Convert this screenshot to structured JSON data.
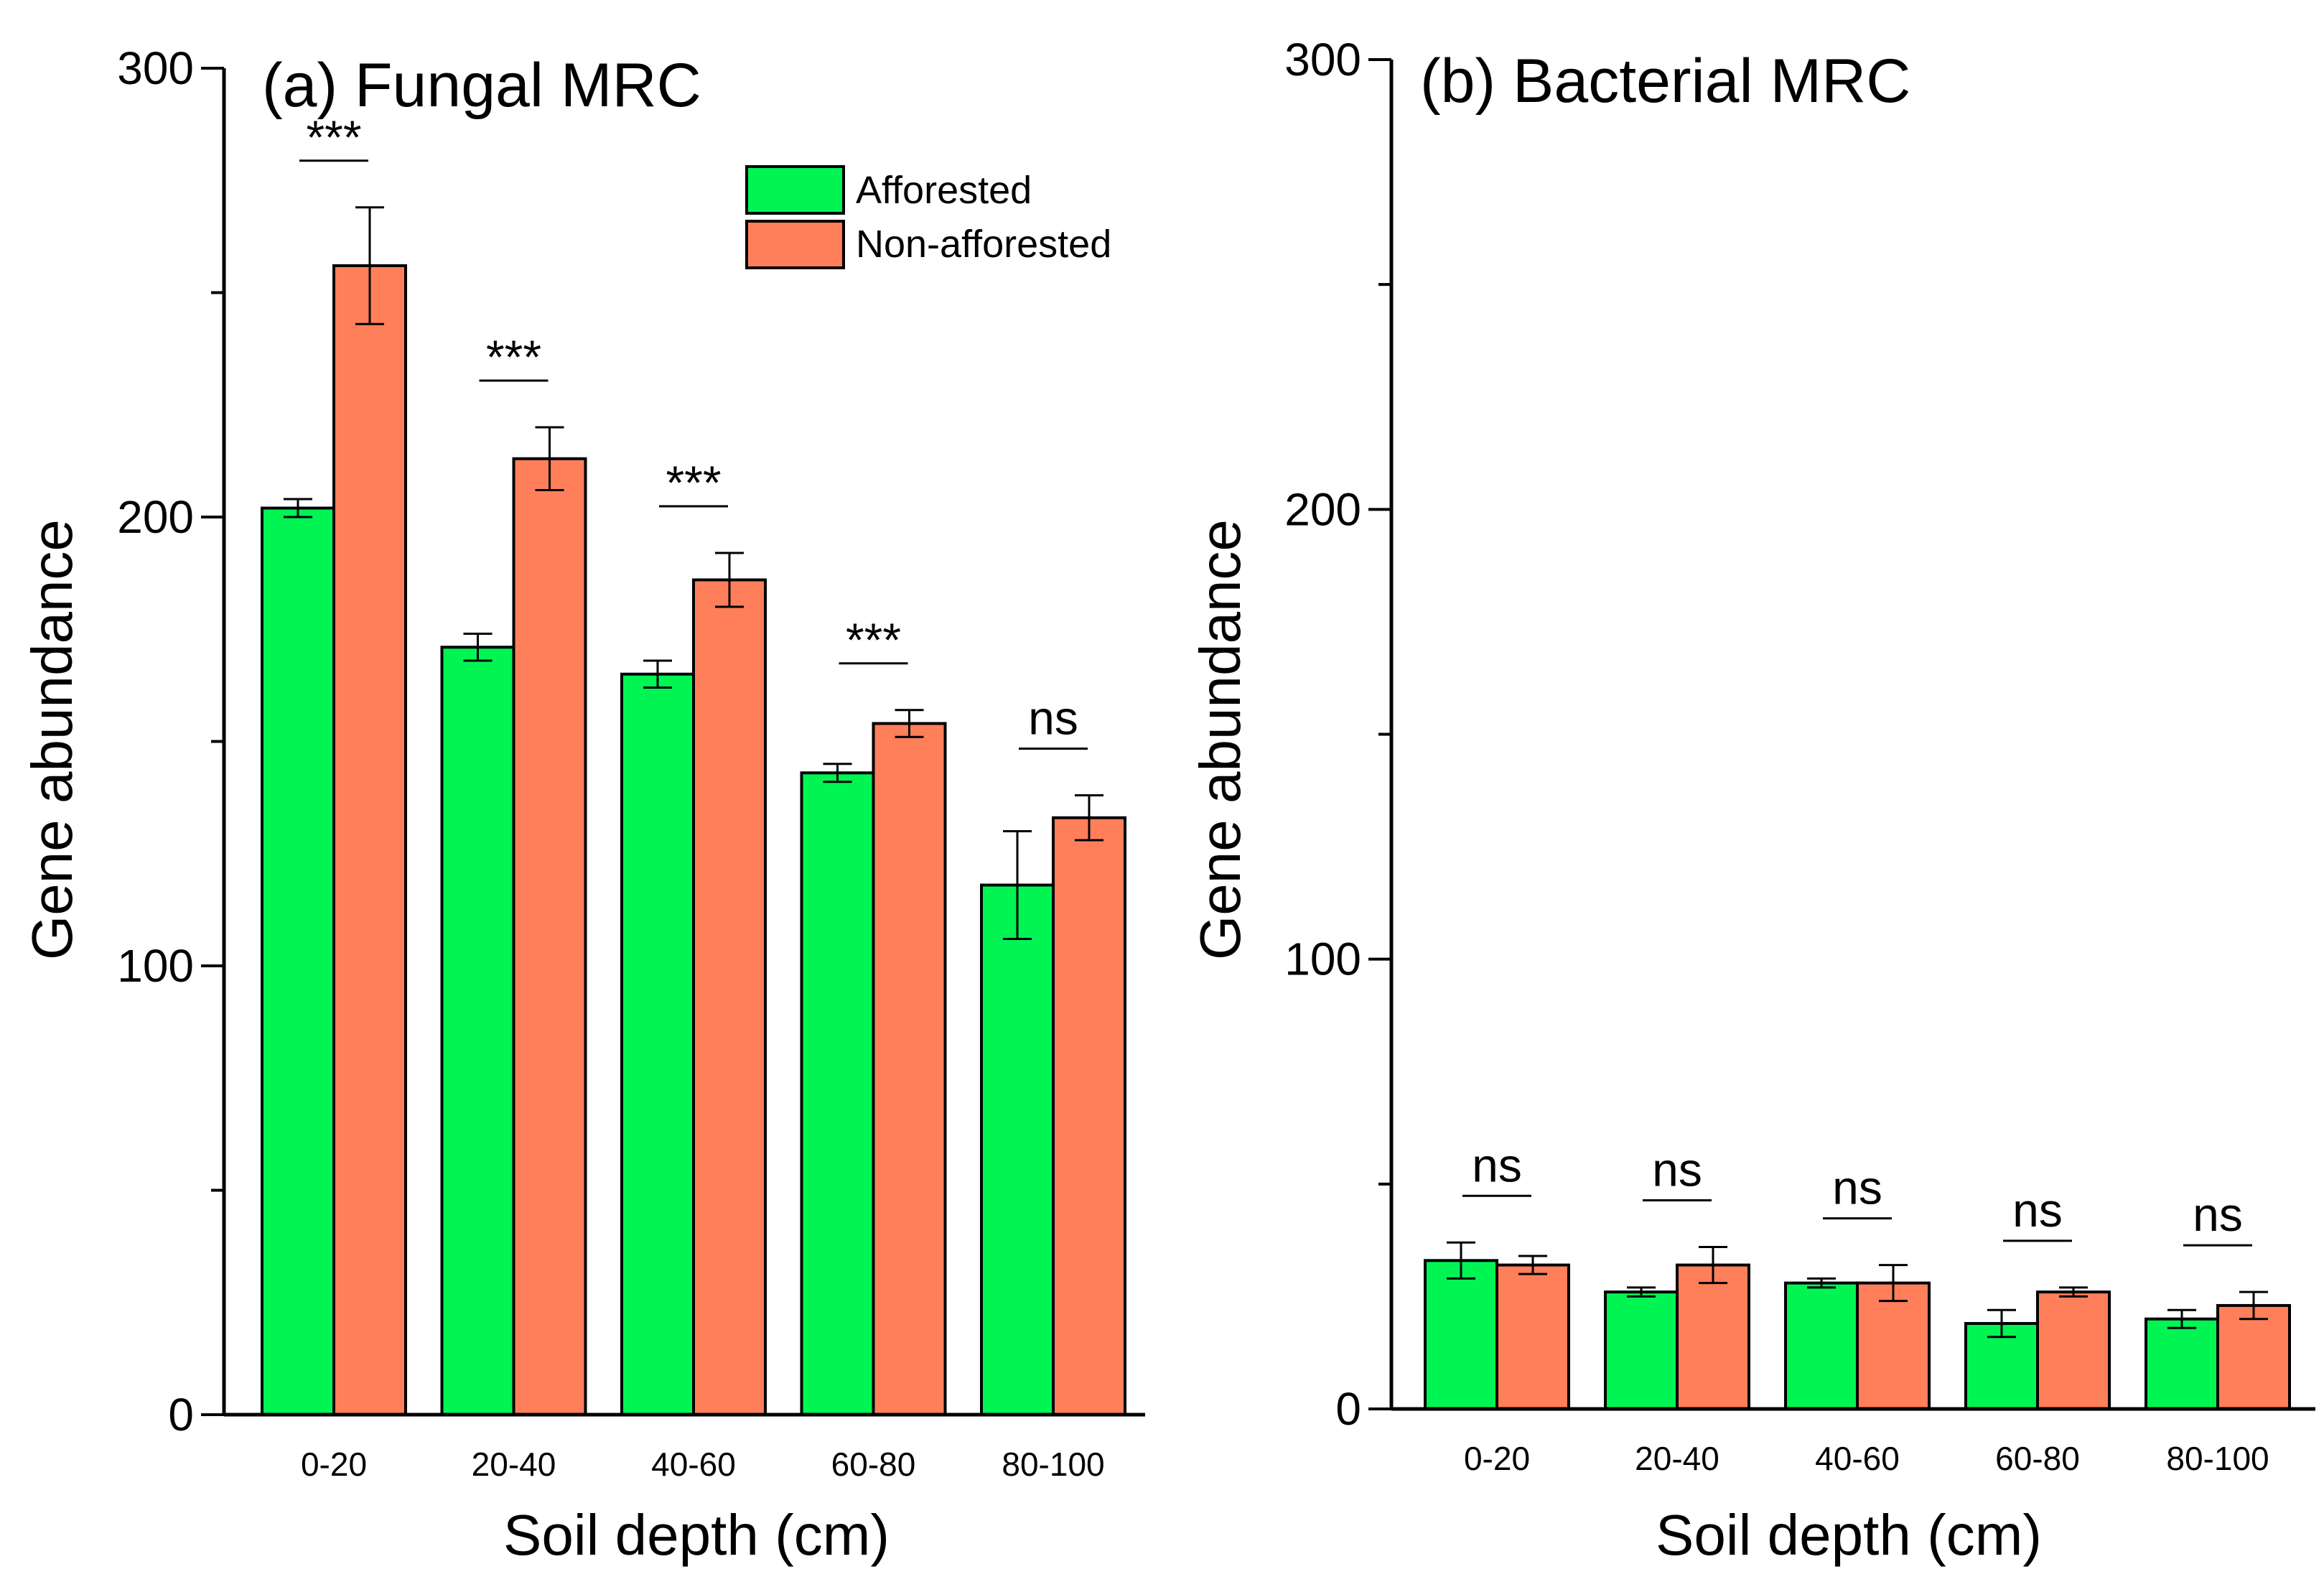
{
  "colors": {
    "afforested": "#00f553",
    "non_afforested": "#ff7f5a",
    "axis": "#000000"
  },
  "legend": {
    "items": [
      "Afforested",
      "Non-afforested"
    ]
  },
  "chart_data": [
    {
      "type": "bar",
      "title": "(a) Fungal MRC",
      "xlabel": "Soil depth (cm)",
      "ylabel": "Gene abundance",
      "ylim": [
        0,
        300
      ],
      "yticks": [
        0,
        100,
        200,
        300
      ],
      "categories": [
        "0-20",
        "20-40",
        "40-60",
        "60-80",
        "80-100"
      ],
      "series": [
        {
          "name": "Afforested",
          "values": [
            202,
            171,
            165,
            143,
            118
          ],
          "errors": [
            2,
            3,
            3,
            2,
            12
          ]
        },
        {
          "name": "Non-afforested",
          "values": [
            256,
            213,
            186,
            154,
            133
          ],
          "errors": [
            13,
            7,
            6,
            3,
            5
          ]
        }
      ],
      "significance": [
        "***",
        "***",
        "***",
        "***",
        "ns"
      ],
      "legend_position": "top-right"
    },
    {
      "type": "bar",
      "title": "(b) Bacterial MRC",
      "xlabel": "Soil depth (cm)",
      "ylabel": "Gene abundance",
      "ylim": [
        0,
        300
      ],
      "yticks": [
        0,
        100,
        200,
        300
      ],
      "categories": [
        "0-20",
        "20-40",
        "40-60",
        "60-80",
        "80-100"
      ],
      "series": [
        {
          "name": "Afforested",
          "values": [
            33,
            26,
            28,
            19,
            20
          ],
          "errors": [
            4,
            1,
            1,
            3,
            2
          ]
        },
        {
          "name": "Non-afforested",
          "values": [
            32,
            32,
            28,
            26,
            23
          ],
          "errors": [
            2,
            4,
            4,
            1,
            3
          ]
        }
      ],
      "significance": [
        "ns",
        "ns",
        "ns",
        "ns",
        "ns"
      ]
    }
  ]
}
